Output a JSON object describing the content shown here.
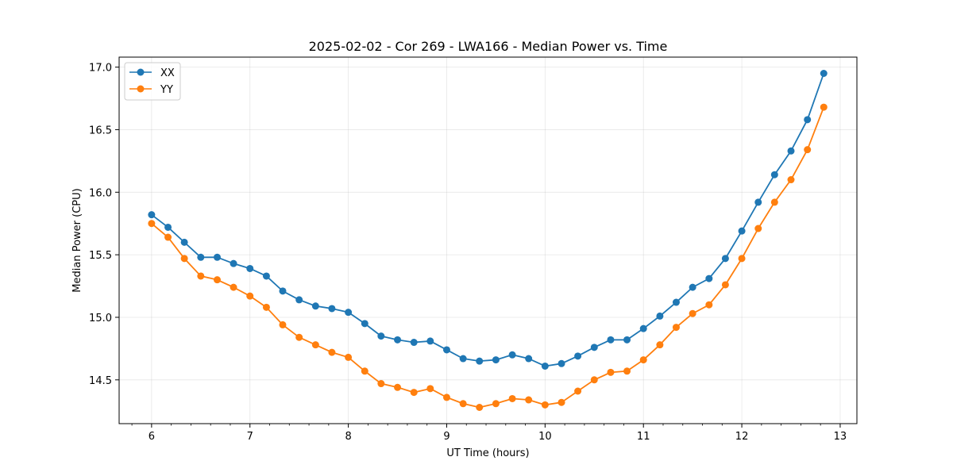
{
  "chart_data": {
    "type": "line",
    "title": "2025-02-02 - Cor 269 - LWA166 - Median Power vs. Time",
    "xlabel": "UT Time (hours)",
    "ylabel": "Median Power (CPU)",
    "xlim": [
      5.67,
      13.17
    ],
    "ylim": [
      14.15,
      17.08
    ],
    "xticks": [
      6,
      7,
      8,
      9,
      10,
      11,
      12,
      13
    ],
    "xtick_labels": [
      "6",
      "7",
      "8",
      "9",
      "10",
      "11",
      "12",
      "13"
    ],
    "yticks": [
      14.5,
      15.0,
      15.5,
      16.0,
      16.5,
      17.0
    ],
    "ytick_labels": [
      "14.5",
      "15.0",
      "15.5",
      "16.0",
      "16.5",
      "17.0"
    ],
    "grid": true,
    "legend_position": "top-left",
    "x": [
      6.0,
      6.167,
      6.333,
      6.5,
      6.667,
      6.833,
      7.0,
      7.167,
      7.333,
      7.5,
      7.667,
      7.833,
      8.0,
      8.167,
      8.333,
      8.5,
      8.667,
      8.833,
      9.0,
      9.167,
      9.333,
      9.5,
      9.667,
      9.833,
      10.0,
      10.167,
      10.333,
      10.5,
      10.667,
      10.833,
      11.0,
      11.167,
      11.333,
      11.5,
      11.667,
      11.833,
      12.0,
      12.167,
      12.333,
      12.5,
      12.667,
      12.833
    ],
    "series": [
      {
        "name": "XX",
        "color": "#1f77b4",
        "values": [
          15.82,
          15.72,
          15.6,
          15.48,
          15.48,
          15.43,
          15.39,
          15.33,
          15.21,
          15.14,
          15.09,
          15.07,
          15.04,
          14.95,
          14.85,
          14.82,
          14.8,
          14.81,
          14.74,
          14.67,
          14.65,
          14.66,
          14.7,
          14.67,
          14.61,
          14.63,
          14.69,
          14.76,
          14.82,
          14.82,
          14.91,
          15.01,
          15.12,
          15.24,
          15.31,
          15.47,
          15.69,
          15.92,
          16.14,
          16.33,
          16.58,
          16.95
        ]
      },
      {
        "name": "YY",
        "color": "#ff7f0e",
        "values": [
          15.75,
          15.64,
          15.47,
          15.33,
          15.3,
          15.24,
          15.17,
          15.08,
          14.94,
          14.84,
          14.78,
          14.72,
          14.68,
          14.57,
          14.47,
          14.44,
          14.4,
          14.43,
          14.36,
          14.31,
          14.28,
          14.31,
          14.35,
          14.34,
          14.3,
          14.32,
          14.41,
          14.5,
          14.56,
          14.57,
          14.66,
          14.78,
          14.92,
          15.03,
          15.1,
          15.26,
          15.47,
          15.71,
          15.92,
          16.1,
          16.34,
          16.68
        ]
      }
    ]
  }
}
